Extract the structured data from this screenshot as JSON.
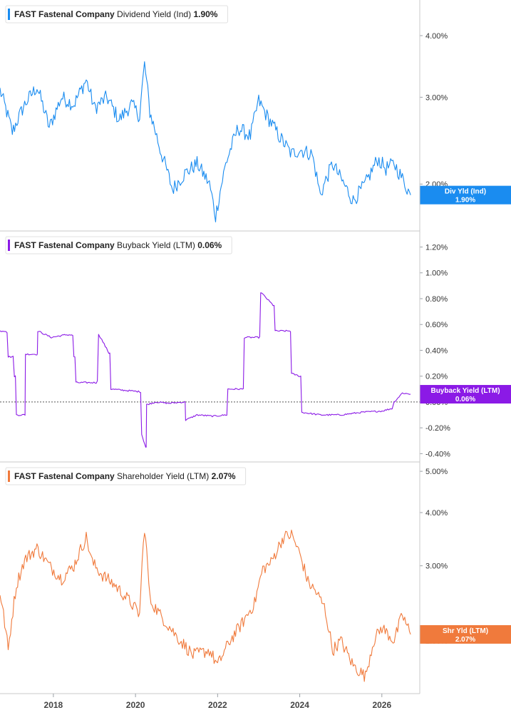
{
  "colors": {
    "dividend": "#1a8cf0",
    "buyback": "#8b1ae6",
    "shareholder": "#f07a3c",
    "axis": "#9aa0a6",
    "text": "#333333"
  },
  "chart_data": [
    {
      "type": "line",
      "ticker": "FAST",
      "company": "Fastenal Company",
      "metric": "Dividend Yield (Ind)",
      "current_value": "1.90%",
      "tag_label": "Div Yld (Ind)",
      "y_scale": "log",
      "ylim": [
        1.65,
        4.6
      ],
      "yticks": [
        2.0,
        3.0,
        4.0
      ],
      "ytick_labels": [
        "2.00%",
        "3.00%",
        "4.00%"
      ],
      "x": [
        2016.7,
        2017.0,
        2017.3,
        2017.6,
        2017.9,
        2018.2,
        2018.5,
        2018.8,
        2019.0,
        2019.3,
        2019.6,
        2019.9,
        2020.1,
        2020.22,
        2020.35,
        2020.6,
        2020.9,
        2021.2,
        2021.5,
        2021.8,
        2021.95,
        2022.2,
        2022.5,
        2022.8,
        2023.0,
        2023.2,
        2023.5,
        2023.8,
        2024.0,
        2024.3,
        2024.5,
        2024.8,
        2025.0,
        2025.3,
        2025.6,
        2025.9,
        2026.1,
        2026.3,
        2026.5,
        2026.7
      ],
      "values": [
        3.1,
        2.55,
        2.9,
        3.15,
        2.6,
        3.0,
        2.9,
        3.25,
        2.85,
        3.0,
        2.7,
        2.9,
        2.75,
        3.5,
        2.8,
        2.35,
        1.95,
        2.1,
        2.2,
        2.0,
        1.72,
        2.2,
        2.6,
        2.5,
        2.95,
        2.75,
        2.5,
        2.3,
        2.35,
        2.3,
        1.9,
        2.2,
        2.05,
        1.85,
        2.0,
        2.25,
        2.15,
        2.2,
        2.05,
        1.9
      ]
    },
    {
      "type": "line",
      "ticker": "FAST",
      "company": "Fastenal Company",
      "metric": "Buyback Yield (LTM)",
      "current_value": "0.06%",
      "tag_label": "Buyback Yield (LTM)",
      "y_scale": "linear",
      "ylim": [
        -0.42,
        1.28
      ],
      "yticks": [
        -0.4,
        -0.2,
        0.0,
        0.2,
        0.4,
        0.6,
        0.8,
        1.0,
        1.2
      ],
      "ytick_labels": [
        "-0.40%",
        "-0.20%",
        "0.00%",
        "0.20%",
        "0.40%",
        "0.60%",
        "0.80%",
        "1.00%",
        "1.20%"
      ],
      "x": [
        2016.7,
        2016.9,
        2017.05,
        2017.1,
        2017.3,
        2017.32,
        2017.6,
        2017.62,
        2017.95,
        2018.3,
        2018.5,
        2018.55,
        2018.9,
        2019.1,
        2019.15,
        2019.35,
        2019.4,
        2020.1,
        2020.15,
        2020.25,
        2020.27,
        2020.5,
        2020.8,
        2021.2,
        2021.22,
        2021.5,
        2021.9,
        2022.2,
        2022.25,
        2022.6,
        2022.65,
        2023.0,
        2023.05,
        2023.35,
        2023.4,
        2023.75,
        2023.8,
        2024.0,
        2024.05,
        2024.5,
        2025.0,
        2025.5,
        2026.0,
        2026.25,
        2026.3,
        2026.5,
        2026.7
      ],
      "values": [
        0.55,
        0.35,
        0.2,
        -0.1,
        -0.1,
        0.37,
        0.37,
        0.55,
        0.5,
        0.52,
        0.35,
        0.15,
        0.15,
        0.52,
        0.5,
        0.38,
        0.1,
        0.08,
        -0.25,
        -0.35,
        -0.02,
        0.0,
        -0.01,
        0.0,
        -0.14,
        -0.1,
        -0.11,
        -0.1,
        0.1,
        0.1,
        0.5,
        0.5,
        0.85,
        0.75,
        0.55,
        0.55,
        0.22,
        0.2,
        -0.08,
        -0.1,
        -0.1,
        -0.08,
        -0.07,
        -0.05,
        0.0,
        0.07,
        0.06
      ]
    },
    {
      "type": "line",
      "ticker": "FAST",
      "company": "Fastenal Company",
      "metric": "Shareholder Yield (LTM)",
      "current_value": "2.07%",
      "tag_label": "Shr Yld (LTM)",
      "y_scale": "log",
      "ylim": [
        1.55,
        5.1
      ],
      "yticks": [
        2.0,
        3.0,
        4.0,
        5.0
      ],
      "ytick_labels": [
        "2.00%",
        "3.00%",
        "4.00%",
        "5.00%"
      ],
      "x": [
        2016.7,
        2016.9,
        2017.1,
        2017.3,
        2017.6,
        2017.9,
        2018.2,
        2018.5,
        2018.8,
        2018.95,
        2019.2,
        2019.5,
        2019.9,
        2020.1,
        2020.22,
        2020.35,
        2020.6,
        2021.0,
        2021.4,
        2021.8,
        2022.0,
        2022.3,
        2022.6,
        2022.9,
        2023.1,
        2023.3,
        2023.6,
        2023.8,
        2024.0,
        2024.2,
        2024.4,
        2024.6,
        2024.8,
        2025.0,
        2025.3,
        2025.6,
        2025.8,
        2026.0,
        2026.3,
        2026.5,
        2026.7
      ],
      "values": [
        2.6,
        1.9,
        2.7,
        3.1,
        3.3,
        3.0,
        2.8,
        3.0,
        3.5,
        3.05,
        2.85,
        2.7,
        2.45,
        2.3,
        3.7,
        2.5,
        2.3,
        2.05,
        1.85,
        1.9,
        1.75,
        2.0,
        2.2,
        2.45,
        2.95,
        3.05,
        3.5,
        3.55,
        3.2,
        2.75,
        2.6,
        2.4,
        1.9,
        2.0,
        1.75,
        1.65,
        2.0,
        2.15,
        2.0,
        2.3,
        2.07
      ]
    }
  ],
  "x_axis": {
    "ticks": [
      2018,
      2020,
      2022,
      2024,
      2026
    ],
    "labels": [
      "2018",
      "2020",
      "2022",
      "2024",
      "2026"
    ]
  }
}
